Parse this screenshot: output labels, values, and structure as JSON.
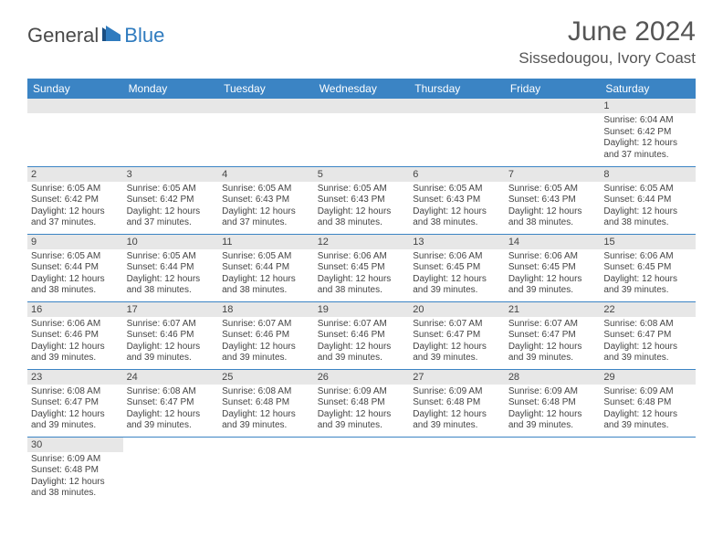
{
  "logo": {
    "part1": "General",
    "part2": "Blue"
  },
  "title": "June 2024",
  "location": "Sissedougou, Ivory Coast",
  "colors": {
    "header_bg": "#3b84c4",
    "header_text": "#ffffff",
    "daynum_bg": "#e7e7e7",
    "text": "#444444",
    "divider": "#3b84c4"
  },
  "weekdays": [
    "Sunday",
    "Monday",
    "Tuesday",
    "Wednesday",
    "Thursday",
    "Friday",
    "Saturday"
  ],
  "weeks": [
    [
      null,
      null,
      null,
      null,
      null,
      null,
      {
        "n": "1",
        "sr": "6:04 AM",
        "ss": "6:42 PM",
        "dl": "12 hours and 37 minutes."
      }
    ],
    [
      {
        "n": "2",
        "sr": "6:05 AM",
        "ss": "6:42 PM",
        "dl": "12 hours and 37 minutes."
      },
      {
        "n": "3",
        "sr": "6:05 AM",
        "ss": "6:42 PM",
        "dl": "12 hours and 37 minutes."
      },
      {
        "n": "4",
        "sr": "6:05 AM",
        "ss": "6:43 PM",
        "dl": "12 hours and 37 minutes."
      },
      {
        "n": "5",
        "sr": "6:05 AM",
        "ss": "6:43 PM",
        "dl": "12 hours and 38 minutes."
      },
      {
        "n": "6",
        "sr": "6:05 AM",
        "ss": "6:43 PM",
        "dl": "12 hours and 38 minutes."
      },
      {
        "n": "7",
        "sr": "6:05 AM",
        "ss": "6:43 PM",
        "dl": "12 hours and 38 minutes."
      },
      {
        "n": "8",
        "sr": "6:05 AM",
        "ss": "6:44 PM",
        "dl": "12 hours and 38 minutes."
      }
    ],
    [
      {
        "n": "9",
        "sr": "6:05 AM",
        "ss": "6:44 PM",
        "dl": "12 hours and 38 minutes."
      },
      {
        "n": "10",
        "sr": "6:05 AM",
        "ss": "6:44 PM",
        "dl": "12 hours and 38 minutes."
      },
      {
        "n": "11",
        "sr": "6:05 AM",
        "ss": "6:44 PM",
        "dl": "12 hours and 38 minutes."
      },
      {
        "n": "12",
        "sr": "6:06 AM",
        "ss": "6:45 PM",
        "dl": "12 hours and 38 minutes."
      },
      {
        "n": "13",
        "sr": "6:06 AM",
        "ss": "6:45 PM",
        "dl": "12 hours and 39 minutes."
      },
      {
        "n": "14",
        "sr": "6:06 AM",
        "ss": "6:45 PM",
        "dl": "12 hours and 39 minutes."
      },
      {
        "n": "15",
        "sr": "6:06 AM",
        "ss": "6:45 PM",
        "dl": "12 hours and 39 minutes."
      }
    ],
    [
      {
        "n": "16",
        "sr": "6:06 AM",
        "ss": "6:46 PM",
        "dl": "12 hours and 39 minutes."
      },
      {
        "n": "17",
        "sr": "6:07 AM",
        "ss": "6:46 PM",
        "dl": "12 hours and 39 minutes."
      },
      {
        "n": "18",
        "sr": "6:07 AM",
        "ss": "6:46 PM",
        "dl": "12 hours and 39 minutes."
      },
      {
        "n": "19",
        "sr": "6:07 AM",
        "ss": "6:46 PM",
        "dl": "12 hours and 39 minutes."
      },
      {
        "n": "20",
        "sr": "6:07 AM",
        "ss": "6:47 PM",
        "dl": "12 hours and 39 minutes."
      },
      {
        "n": "21",
        "sr": "6:07 AM",
        "ss": "6:47 PM",
        "dl": "12 hours and 39 minutes."
      },
      {
        "n": "22",
        "sr": "6:08 AM",
        "ss": "6:47 PM",
        "dl": "12 hours and 39 minutes."
      }
    ],
    [
      {
        "n": "23",
        "sr": "6:08 AM",
        "ss": "6:47 PM",
        "dl": "12 hours and 39 minutes."
      },
      {
        "n": "24",
        "sr": "6:08 AM",
        "ss": "6:47 PM",
        "dl": "12 hours and 39 minutes."
      },
      {
        "n": "25",
        "sr": "6:08 AM",
        "ss": "6:48 PM",
        "dl": "12 hours and 39 minutes."
      },
      {
        "n": "26",
        "sr": "6:09 AM",
        "ss": "6:48 PM",
        "dl": "12 hours and 39 minutes."
      },
      {
        "n": "27",
        "sr": "6:09 AM",
        "ss": "6:48 PM",
        "dl": "12 hours and 39 minutes."
      },
      {
        "n": "28",
        "sr": "6:09 AM",
        "ss": "6:48 PM",
        "dl": "12 hours and 39 minutes."
      },
      {
        "n": "29",
        "sr": "6:09 AM",
        "ss": "6:48 PM",
        "dl": "12 hours and 39 minutes."
      }
    ],
    [
      {
        "n": "30",
        "sr": "6:09 AM",
        "ss": "6:48 PM",
        "dl": "12 hours and 38 minutes."
      },
      null,
      null,
      null,
      null,
      null,
      null
    ]
  ],
  "labels": {
    "sunrise": "Sunrise:",
    "sunset": "Sunset:",
    "daylight": "Daylight:"
  }
}
